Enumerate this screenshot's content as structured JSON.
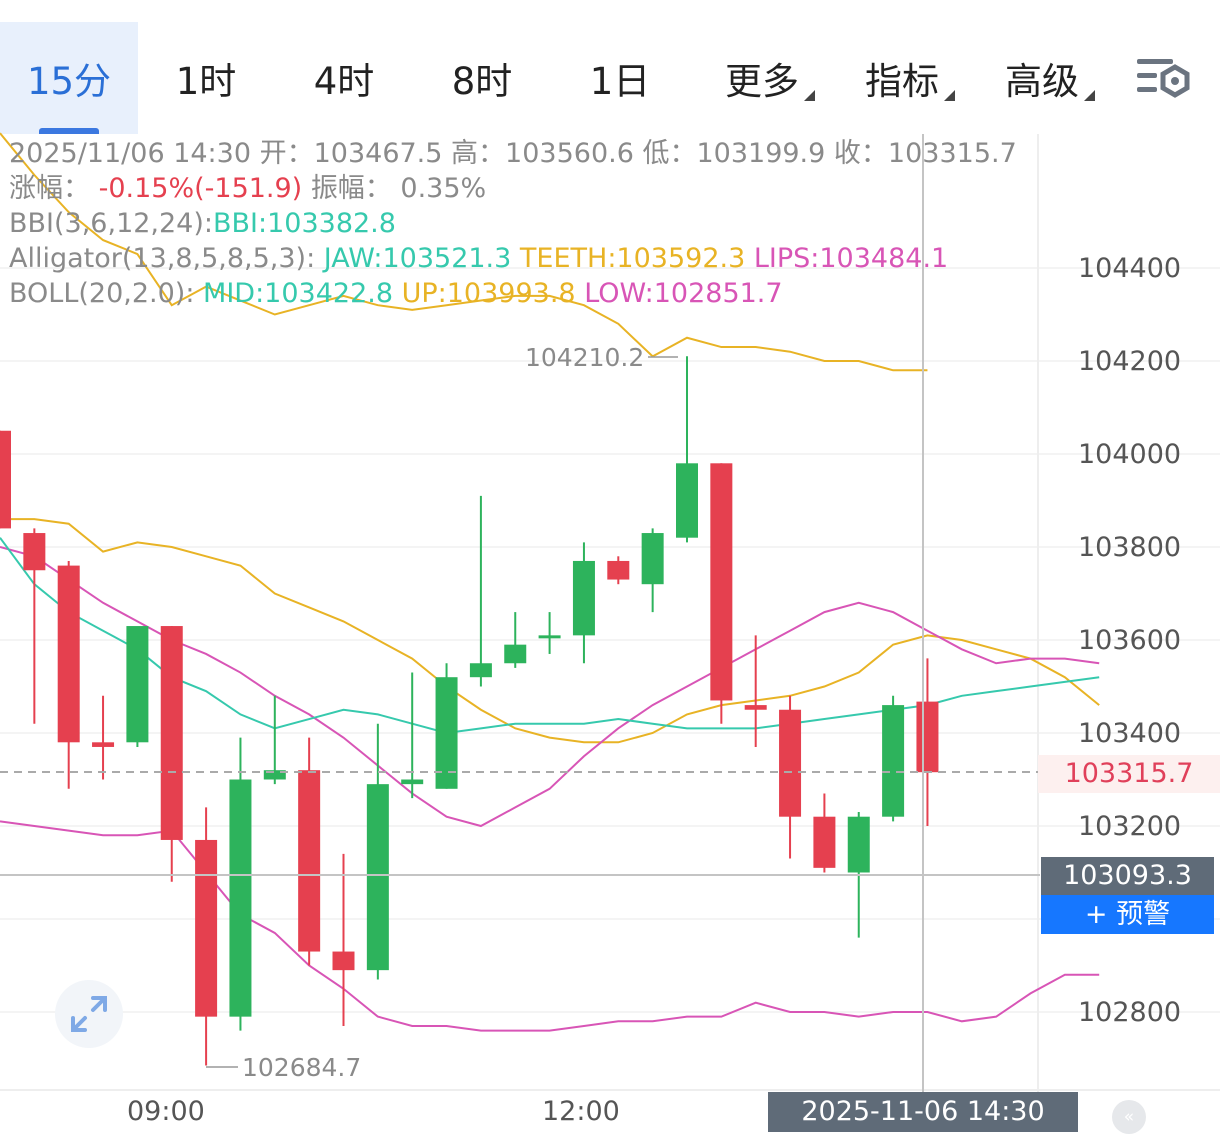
{
  "tabs": [
    {
      "label": "15分",
      "active": true
    },
    {
      "label": "1时"
    },
    {
      "label": "4时"
    },
    {
      "label": "8时"
    },
    {
      "label": "1日"
    },
    {
      "label": "更多",
      "dropdown": true
    },
    {
      "label": "指标",
      "dropdown": true
    },
    {
      "label": "高级",
      "dropdown": true
    }
  ],
  "settings_icon": "chart-settings-icon",
  "info": {
    "date": "2025/11/06 14:30",
    "open_label": "开：",
    "open": "103467.5",
    "high_label": "高：",
    "high": "103560.6",
    "low_label": "低：",
    "low": "103199.9",
    "close_label": "收：",
    "close": "103315.7",
    "change_label": "涨幅：",
    "change": "-0.15%(-151.9)",
    "amplitude_label": "振幅：",
    "amplitude": "0.35%",
    "bbi_label": "BBI(3,6,12,24):",
    "bbi": "BBI:103382.8",
    "alligator_label": "Alligator(13,8,5,8,5,3):",
    "jaw": "JAW:103521.3",
    "teeth": "TEETH:103592.3",
    "lips": "LIPS:103484.1",
    "boll_label": "BOLL(20,2.0):",
    "mid": "MID:103422.8",
    "up": "UP:103993.8",
    "low_band": "LOW:102851.7"
  },
  "colors": {
    "up": "#2db35c",
    "down": "#e5404f",
    "gold": "#e8b325",
    "teal": "#36c9ad",
    "magenta": "#d855b6",
    "accent": "#2a6fd6"
  },
  "current_price": "103315.7",
  "crosshair_price": "103093.3",
  "alert_button": "+ 预警",
  "crosshair_time": "2025-11-06 14:30",
  "max_label": "104210.2",
  "min_label": "102684.7",
  "expand_icon": "expand-icon",
  "scroll_end_icon": "scroll-to-latest-icon",
  "chart_data": {
    "type": "candlestick",
    "interval": "15m",
    "y_ticks": [
      "104400",
      "104200",
      "104000",
      "103800",
      "103600",
      "103400",
      "103200",
      "102800"
    ],
    "ylim": [
      102510,
      104570
    ],
    "x_labels": [
      "09:00",
      "12:00"
    ],
    "candles": [
      {
        "o": 104050,
        "h": 104050,
        "l": 103840,
        "c": 103840
      },
      {
        "o": 103830,
        "h": 103840,
        "l": 103420,
        "c": 103750
      },
      {
        "o": 103760,
        "h": 103770,
        "l": 103280,
        "c": 103380
      },
      {
        "o": 103380,
        "h": 103480,
        "l": 103300,
        "c": 103370
      },
      {
        "o": 103380,
        "h": 103620,
        "l": 103370,
        "c": 103630
      },
      {
        "o": 103630,
        "h": 103630,
        "l": 103080,
        "c": 103170
      },
      {
        "o": 103170,
        "h": 103240,
        "l": 102685,
        "c": 102790
      },
      {
        "o": 102790,
        "h": 103390,
        "l": 102760,
        "c": 103300
      },
      {
        "o": 103300,
        "h": 103480,
        "l": 103290,
        "c": 103320
      },
      {
        "o": 103320,
        "h": 103390,
        "l": 102900,
        "c": 102930
      },
      {
        "o": 102930,
        "h": 103140,
        "l": 102770,
        "c": 102890
      },
      {
        "o": 102890,
        "h": 103420,
        "l": 102870,
        "c": 103290
      },
      {
        "o": 103290,
        "h": 103530,
        "l": 103260,
        "c": 103300
      },
      {
        "o": 103280,
        "h": 103550,
        "l": 103280,
        "c": 103520
      },
      {
        "o": 103520,
        "h": 103910,
        "l": 103500,
        "c": 103550
      },
      {
        "o": 103550,
        "h": 103660,
        "l": 103540,
        "c": 103590
      },
      {
        "o": 103610,
        "h": 103660,
        "l": 103570,
        "c": 103610
      },
      {
        "o": 103610,
        "h": 103810,
        "l": 103550,
        "c": 103770
      },
      {
        "o": 103770,
        "h": 103780,
        "l": 103720,
        "c": 103730
      },
      {
        "o": 103720,
        "h": 103840,
        "l": 103660,
        "c": 103830
      },
      {
        "o": 103820,
        "h": 104210.2,
        "l": 103810,
        "c": 103980
      },
      {
        "o": 103980,
        "h": 103980,
        "l": 103420,
        "c": 103470
      },
      {
        "o": 103460,
        "h": 103610,
        "l": 103370,
        "c": 103450
      },
      {
        "o": 103450,
        "h": 103480,
        "l": 103130,
        "c": 103220
      },
      {
        "o": 103220,
        "h": 103270,
        "l": 103100,
        "c": 103110
      },
      {
        "o": 103100,
        "h": 103230,
        "l": 102960,
        "c": 103220
      },
      {
        "o": 103220,
        "h": 103480,
        "l": 103210,
        "c": 103460
      },
      {
        "o": 103467.5,
        "h": 103560.6,
        "l": 103199.9,
        "c": 103315.7
      }
    ],
    "boll_up": [
      103860,
      103860,
      103850,
      103790,
      103810,
      103800,
      103780,
      103760,
      103700,
      103670,
      103640,
      103600,
      103560,
      103500,
      103450,
      103410,
      103390,
      103380,
      103380,
      103400,
      103440,
      103460,
      103470,
      103480,
      103500,
      103530,
      103590,
      103610,
      103600,
      103580,
      103560,
      103520,
      103460
    ],
    "boll_mid": [
      103800,
      103780,
      103730,
      103680,
      103640,
      103600,
      103570,
      103530,
      103480,
      103440,
      103390,
      103330,
      103270,
      103220,
      103200,
      103240,
      103280,
      103350,
      103410,
      103460,
      103500,
      103540,
      103580,
      103620,
      103660,
      103680,
      103660,
      103620,
      103580,
      103550,
      103560,
      103560,
      103550
    ],
    "boll_low": [
      103820,
      103720,
      103660,
      103620,
      103580,
      103520,
      103490,
      103440,
      103410,
      103430,
      103450,
      103440,
      103420,
      103400,
      103410,
      103420,
      103420,
      103420,
      103430,
      103420,
      103410,
      103410,
      103410,
      103420,
      103430,
      103440,
      103450,
      103460,
      103480,
      103490,
      103500,
      103510,
      103520
    ],
    "series_gold_top": [
      104690,
      104600,
      104520,
      104460,
      104430,
      104320,
      104360,
      104330,
      104300,
      104320,
      104340,
      104320,
      104310,
      104320,
      104330,
      104340,
      104340,
      104320,
      104280,
      104210,
      104250,
      104230,
      104230,
      104220,
      104200,
      104200,
      104180,
      104180
    ],
    "series_magenta_low": [
      103210,
      103200,
      103190,
      103180,
      103180,
      103190,
      103100,
      103010,
      102970,
      102900,
      102850,
      102790,
      102770,
      102770,
      102760,
      102760,
      102760,
      102770,
      102780,
      102780,
      102790,
      102790,
      102820,
      102800,
      102800,
      102790,
      102800,
      102800,
      102780,
      102790,
      102840,
      102880,
      102880
    ]
  }
}
